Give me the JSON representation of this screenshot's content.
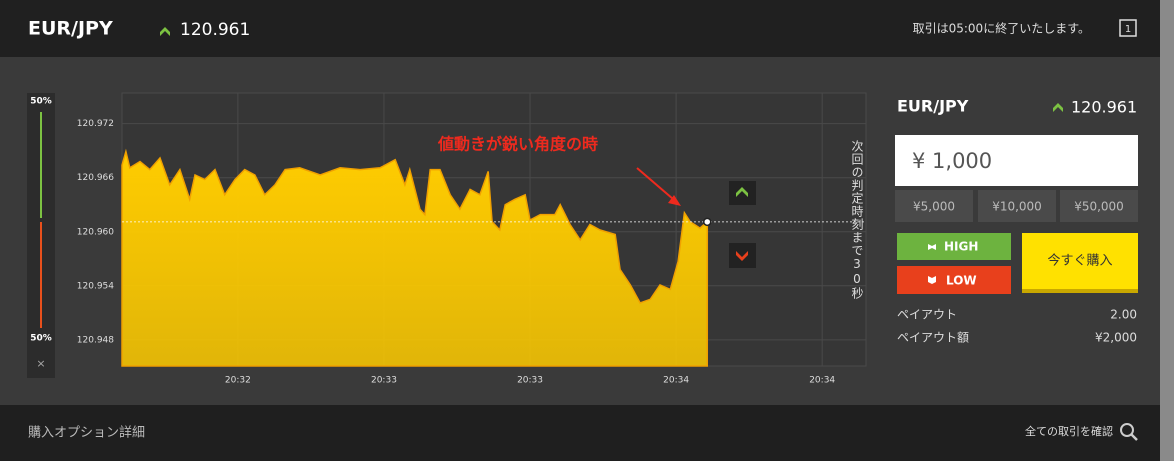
{
  "header": {
    "pair": "EUR/JPY",
    "price": "120.961",
    "notice": "取引は05:00に終了いたします。",
    "icon_label": "1"
  },
  "gauge": {
    "top": "50%",
    "bottom": "50%",
    "close": "×"
  },
  "chart_data": {
    "type": "area",
    "annotation": "値動きが鋭い角度の時",
    "countdown": "次回の判定時刻まで30秒",
    "x": [
      -23.8,
      -23.0,
      -22.2,
      -20.1,
      -18.1,
      -16.0,
      -14.0,
      -11.9,
      -9.9,
      -8.8,
      -6.8,
      -4.7,
      -2.7,
      -0.6,
      1.4,
      3.5,
      5.5,
      7.6,
      9.7,
      12.7,
      16.9,
      21.0,
      25.1,
      29.2,
      32.3,
      34.3,
      35.3,
      37.4,
      38.4,
      39.5,
      41.5,
      43.6,
      45.6,
      47.7,
      49.7,
      51.4,
      52.2,
      53.8,
      54.9,
      56.9,
      59.0,
      60.0,
      62.1,
      65.1,
      66.2,
      68.2,
      70.3,
      72.3,
      74.4,
      77.5,
      78.5,
      80.6,
      82.6,
      84.7,
      86.7,
      88.8,
      90.4,
      91.7,
      92.9,
      94.9,
      96.4
    ],
    "values": [
      120.9674,
      120.9689,
      120.9671,
      120.9678,
      120.9669,
      120.9682,
      120.9652,
      120.9669,
      120.9636,
      120.9663,
      120.9658,
      120.9669,
      120.9641,
      120.9658,
      120.9669,
      120.9663,
      120.9641,
      120.9652,
      120.9669,
      120.9671,
      120.9663,
      120.9671,
      120.9669,
      120.9671,
      120.968,
      120.9652,
      120.9669,
      120.9625,
      120.9619,
      120.9669,
      120.9669,
      120.9641,
      120.9625,
      120.9647,
      120.9641,
      120.9667,
      120.9611,
      120.9602,
      120.963,
      120.9636,
      120.9641,
      120.9613,
      120.9619,
      120.9619,
      120.963,
      120.9608,
      120.9591,
      120.9608,
      120.9602,
      120.9597,
      120.9558,
      120.9541,
      120.9521,
      120.9525,
      120.9541,
      120.9536,
      120.9567,
      120.9621,
      120.9611,
      120.9604,
      120.9611
    ],
    "color": "#ffcc00",
    "xlim": [
      -23.8,
      129.0
    ],
    "ylim": [
      120.9451,
      120.9754
    ],
    "xticks": [
      {
        "value": 0,
        "label": "20:32"
      },
      {
        "value": 30,
        "label": "20:33"
      },
      {
        "value": 60,
        "label": "20:33"
      },
      {
        "value": 90,
        "label": "20:34"
      },
      {
        "value": 120,
        "label": "20:34"
      }
    ],
    "yticks": [
      120.948,
      120.954,
      {
        "value": 120.96,
        "label": "120.960"
      },
      120.966,
      120.972
    ],
    "grid": true
  },
  "trade_panel": {
    "pair": "EUR/JPY",
    "price": "120.961",
    "amount": "¥ 1,000",
    "presets": [
      "¥5,000",
      "¥10,000",
      "¥50,000"
    ],
    "high": "HIGH",
    "low": "LOW",
    "buy": "今すぐ購入",
    "payout_label": "ペイアウト",
    "payout": "2.00",
    "payout_amount_label": "ペイアウト額",
    "payout_amount": "¥2,000"
  },
  "footer": {
    "details": "購入オプション詳細",
    "all_trades": "全ての取引を確認"
  }
}
